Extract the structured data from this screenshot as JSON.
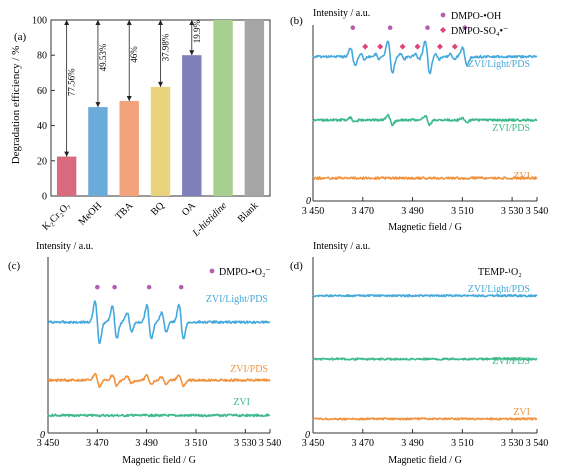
{
  "colors": {
    "blue": "#45a9dc",
    "green": "#3dba8a",
    "orange": "#f0933e",
    "purple_marker": "#b45fb0",
    "pink_marker": "#e0427a",
    "axis": "#333333"
  },
  "chart_data": [
    {
      "panel": "(a)",
      "type": "bar",
      "ylabel": "Degradation efficiency / %",
      "ylim": [
        0,
        100
      ],
      "yticks": [
        "0",
        "20",
        "40",
        "60",
        "80",
        "100"
      ],
      "categories": [
        "K₂Cr₂O₇",
        "MeOH",
        "TBA",
        "BQ",
        "OA",
        "L-histidine",
        "Blank"
      ],
      "values": [
        22.4,
        50.5,
        54.0,
        62.0,
        80.0,
        100,
        100
      ],
      "bar_colors": [
        "#d9697d",
        "#6aabd9",
        "#f3a37a",
        "#e9d37d",
        "#7f7fba",
        "#a7cf8f",
        "#a6a6a6"
      ],
      "annotations": [
        "77.56%",
        "49.53%",
        "46%",
        "37.98%",
        "19.9%",
        "",
        ""
      ]
    },
    {
      "panel": "(b)",
      "type": "line",
      "ylabel": "Intensity / a.u.",
      "xlabel": "Magnetic field / G",
      "xlim": [
        3450,
        3540
      ],
      "xticks": [
        "3 450",
        "3 470",
        "3 490",
        "3 510",
        "3 530",
        "3 540"
      ],
      "origin_label": "0",
      "legend": [
        "DMPO-•OH",
        "DMPO-SO₄•⁻"
      ],
      "series": [
        {
          "name": "ZVI/Light/PDS",
          "baseline": 0.82,
          "peaks": [
            [
              3466,
              13
            ],
            [
              3481,
              24
            ],
            [
              3496,
              24
            ],
            [
              3511,
              13
            ]
          ],
          "sulfate": [
            [
              3470,
              4
            ],
            [
              3476,
              4
            ],
            [
              3486,
              4
            ],
            [
              3492,
              4
            ],
            [
              3500,
              4
            ],
            [
              3506,
              4
            ]
          ]
        },
        {
          "name": "ZVI/PDS",
          "baseline": 0.46,
          "peaks": [
            [
              3466,
              3
            ],
            [
              3481,
              7
            ],
            [
              3496,
              7
            ],
            [
              3511,
              3
            ]
          ],
          "sulfate": []
        },
        {
          "name": "ZVI",
          "baseline": 0.13,
          "peaks": [],
          "sulfate": []
        }
      ],
      "oh_markers": [
        3466,
        3481,
        3496,
        3511
      ],
      "so4_markers": [
        3471,
        3477,
        3486,
        3492,
        3501,
        3507
      ]
    },
    {
      "panel": "(c)",
      "type": "line",
      "ylabel": "Intensity / a.u.",
      "xlabel": "Magnetic field / G",
      "xlim": [
        3450,
        3540
      ],
      "xticks": [
        "3 450",
        "3 470",
        "3 490",
        "3 510",
        "3 530",
        "3 540"
      ],
      "origin_label": "0",
      "legend": [
        "DMPO-•O₂⁻"
      ],
      "series": [
        {
          "name": "ZVI/Light/PDS",
          "baseline": 0.63,
          "peaks": [
            [
              3470,
              30
            ],
            [
              3477,
              24
            ],
            [
              3483,
              14
            ],
            [
              3491,
              25
            ],
            [
              3497,
              14
            ],
            [
              3504,
              25
            ]
          ]
        },
        {
          "name": "ZVI/PDS",
          "baseline": 0.3,
          "peaks": [
            [
              3470,
              9
            ],
            [
              3477,
              8
            ],
            [
              3483,
              5
            ],
            [
              3491,
              7
            ],
            [
              3497,
              5
            ],
            [
              3504,
              8
            ]
          ]
        },
        {
          "name": "ZVI",
          "baseline": 0.1,
          "peaks": []
        }
      ],
      "o2_markers": [
        3470,
        3477,
        3491,
        3504
      ]
    },
    {
      "panel": "(d)",
      "type": "line",
      "ylabel": "Intensity / a.u.",
      "xlabel": "Magnetic field / G",
      "xlim": [
        3450,
        3540
      ],
      "xticks": [
        "3 450",
        "3 470",
        "3 490",
        "3 510",
        "3 530",
        "3 540"
      ],
      "origin_label": "0",
      "legend": [
        "TEMP-¹O₂"
      ],
      "series": [
        {
          "name": "ZVI/Light/PDS",
          "baseline": 0.78,
          "peaks": []
        },
        {
          "name": "ZVI/PDS",
          "baseline": 0.42,
          "peaks": []
        },
        {
          "name": "ZVI",
          "baseline": 0.08,
          "peaks": []
        }
      ]
    }
  ],
  "labels": {
    "panel_a": "(a)",
    "panel_b": "(b)",
    "panel_c": "(c)",
    "panel_d": "(d)",
    "intensity": "Intensity / a.u.",
    "field": "Magnetic field / G",
    "oh": "DMPO-•OH",
    "so4": "DMPO-SO₄•⁻",
    "o2": "DMPO-•O₂⁻",
    "temp": "TEMP-¹O₂",
    "s1": "ZVI/Light/PDS",
    "s2": "ZVI/PDS",
    "s3": "ZVI",
    "zero": "0"
  }
}
